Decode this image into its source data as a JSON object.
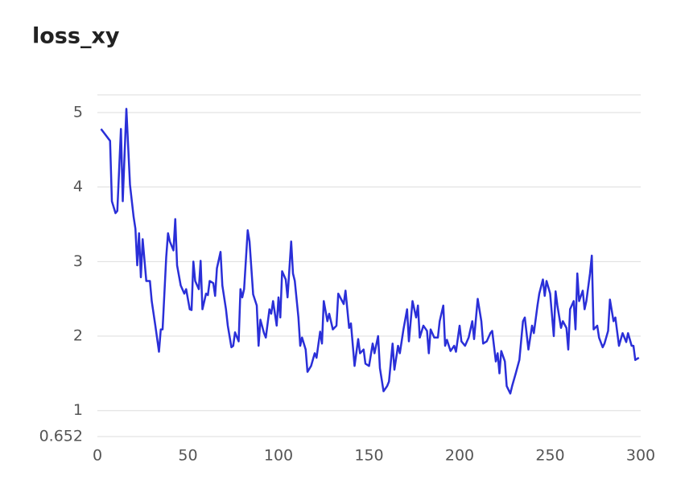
{
  "chart_data": {
    "type": "line",
    "title": "loss_xy",
    "x": [
      2,
      7,
      8,
      10,
      11,
      13,
      14,
      16,
      18,
      20,
      21,
      22,
      23,
      24,
      25,
      27,
      29,
      30,
      32,
      34,
      35,
      36,
      38,
      39,
      40,
      42,
      43,
      44,
      46,
      48,
      49,
      51,
      52,
      53,
      54,
      56,
      57,
      58,
      60,
      61,
      62,
      64,
      65,
      66,
      68,
      69,
      71,
      72,
      74,
      75,
      76,
      78,
      79,
      80,
      81,
      83,
      84,
      86,
      88,
      89,
      90,
      92,
      93,
      95,
      96,
      97,
      99,
      100,
      101,
      102,
      104,
      105,
      107,
      108,
      109,
      111,
      112,
      113,
      115,
      116,
      118,
      120,
      121,
      123,
      124,
      125,
      127,
      128,
      130,
      132,
      133,
      136,
      137,
      139,
      140,
      142,
      144,
      145,
      147,
      148,
      150,
      152,
      153,
      155,
      156,
      158,
      160,
      161,
      163,
      164,
      166,
      167,
      169,
      171,
      172,
      174,
      176,
      177,
      178,
      180,
      182,
      183,
      184,
      186,
      188,
      189,
      191,
      192,
      193,
      195,
      197,
      198,
      200,
      201,
      203,
      205,
      207,
      208,
      210,
      212,
      213,
      215,
      217,
      218,
      220,
      221,
      222,
      223,
      225,
      226,
      228,
      229,
      231,
      233,
      235,
      236,
      238,
      240,
      241,
      243,
      244,
      246,
      247,
      248,
      250,
      252,
      253,
      254,
      256,
      257,
      259,
      260,
      261,
      263,
      264,
      265,
      266,
      268,
      269,
      270,
      272,
      273,
      274,
      276,
      277,
      279,
      280,
      282,
      283,
      285,
      286,
      288,
      290,
      292,
      293,
      295,
      296,
      297,
      299
    ],
    "series": [
      {
        "name": "loss_xy",
        "color": "#2a2fd8",
        "values": [
          4.78,
          4.62,
          3.81,
          3.65,
          3.68,
          4.78,
          3.81,
          5.05,
          4.03,
          3.6,
          3.44,
          2.95,
          3.38,
          2.79,
          3.3,
          2.74,
          2.74,
          2.47,
          2.14,
          1.79,
          2.09,
          2.09,
          3.06,
          3.38,
          3.27,
          3.15,
          3.57,
          2.95,
          2.68,
          2.57,
          2.63,
          2.36,
          2.35,
          3.0,
          2.74,
          2.63,
          3.01,
          2.36,
          2.57,
          2.55,
          2.74,
          2.71,
          2.54,
          2.91,
          3.13,
          2.68,
          2.36,
          2.14,
          1.85,
          1.87,
          2.05,
          1.93,
          2.63,
          2.52,
          2.63,
          3.42,
          3.27,
          2.56,
          2.41,
          1.87,
          2.22,
          2.04,
          1.98,
          2.36,
          2.3,
          2.47,
          2.14,
          2.52,
          2.25,
          2.87,
          2.76,
          2.52,
          3.27,
          2.84,
          2.74,
          2.25,
          1.87,
          1.98,
          1.82,
          1.52,
          1.6,
          1.77,
          1.71,
          2.06,
          1.9,
          2.47,
          2.2,
          2.3,
          2.09,
          2.14,
          2.57,
          2.43,
          2.61,
          2.11,
          2.17,
          1.6,
          1.96,
          1.77,
          1.82,
          1.63,
          1.6,
          1.9,
          1.77,
          2.0,
          1.57,
          1.26,
          1.33,
          1.39,
          1.9,
          1.55,
          1.87,
          1.77,
          2.09,
          2.36,
          1.93,
          2.47,
          2.25,
          2.41,
          1.98,
          2.14,
          2.07,
          1.77,
          2.09,
          1.98,
          1.98,
          2.2,
          2.41,
          1.87,
          1.95,
          1.8,
          1.87,
          1.79,
          2.14,
          1.93,
          1.87,
          1.98,
          2.2,
          1.96,
          2.5,
          2.2,
          1.9,
          1.93,
          2.04,
          2.07,
          1.66,
          1.77,
          1.5,
          1.8,
          1.66,
          1.33,
          1.23,
          1.33,
          1.5,
          1.68,
          2.2,
          2.25,
          1.82,
          2.14,
          2.04,
          2.41,
          2.57,
          2.76,
          2.54,
          2.74,
          2.57,
          2.0,
          2.6,
          2.41,
          2.11,
          2.2,
          2.11,
          1.82,
          2.36,
          2.47,
          2.09,
          2.84,
          2.47,
          2.61,
          2.36,
          2.47,
          2.84,
          3.08,
          2.09,
          2.14,
          1.98,
          1.85,
          1.9,
          2.07,
          2.49,
          2.2,
          2.25,
          1.87,
          2.04,
          1.92,
          2.04,
          1.87,
          1.87,
          1.68,
          1.71
        ]
      }
    ],
    "xlim": [
      0,
      300
    ],
    "xticks": [
      0,
      50,
      100,
      150,
      200,
      250,
      300
    ],
    "ylim": [
      0.652,
      5.237
    ],
    "yticks": [
      0.652,
      1,
      2,
      3,
      4,
      5
    ],
    "grid": true
  }
}
